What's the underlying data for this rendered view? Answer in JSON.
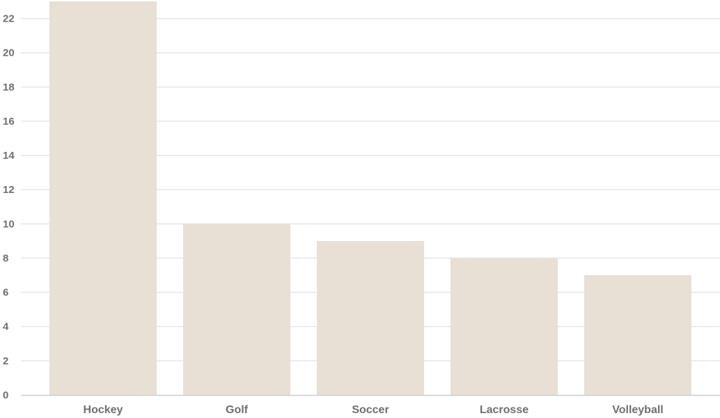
{
  "chart_data": {
    "type": "bar",
    "categories": [
      "Hockey",
      "Golf",
      "Soccer",
      "Lacrosse",
      "Volleyball"
    ],
    "values": [
      23,
      10,
      9,
      8,
      7
    ],
    "title": "",
    "xlabel": "",
    "ylabel": "",
    "ylim": [
      0,
      23
    ],
    "yticks": [
      0,
      2,
      4,
      6,
      8,
      10,
      12,
      14,
      16,
      18,
      20,
      22
    ],
    "grid": true,
    "legend": "none",
    "colors": {
      "bar": "#e8dfd5",
      "grid": "#e3e6ea",
      "axis": "#c9ced4",
      "text": "#6f6f6f"
    }
  }
}
